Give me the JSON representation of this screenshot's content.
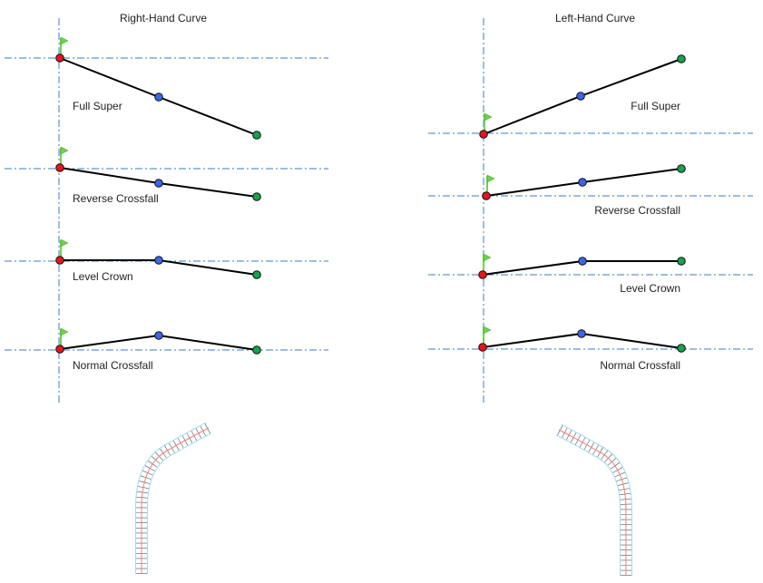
{
  "titles": {
    "right": "Right-Hand Curve",
    "left": "Left-Hand Curve"
  },
  "labels": {
    "full_super": "Full Super",
    "reverse_crossfall": "Reverse Crossfall",
    "level_crown": "Level Crown",
    "normal_crossfall": "Normal Crossfall"
  },
  "colors": {
    "left_edge_point": "#e8141b",
    "crown_point": "#3a66e8",
    "right_edge_point": "#16a34a",
    "flag": "#6fd24a",
    "axis": "#3a7cc0"
  }
}
